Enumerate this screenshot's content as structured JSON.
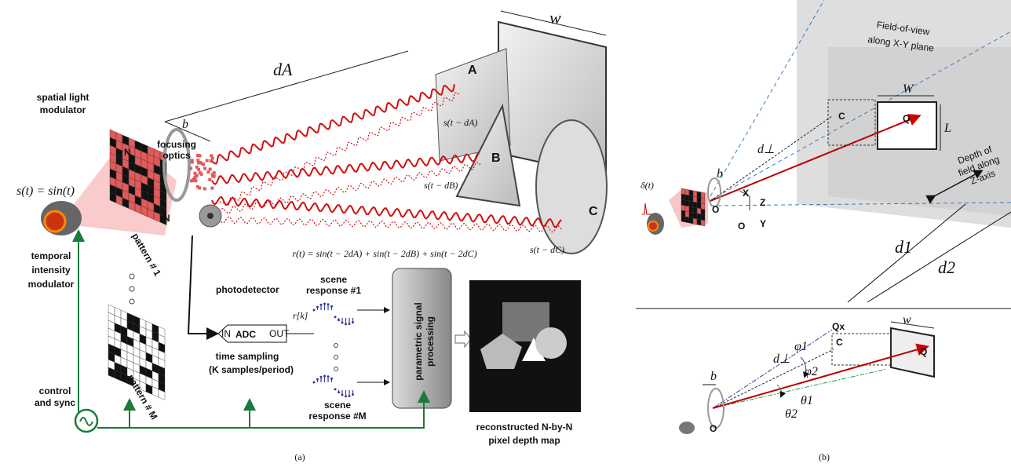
{
  "panel_a": {
    "slm_label": [
      "spatial light",
      "modulator"
    ],
    "optics_label": [
      "focusing",
      "optics"
    ],
    "source_eq": "s(t) = sin(t)",
    "n_top": "N",
    "n_side": "N",
    "pattern_1": "pattern # 1",
    "modulator_label": [
      "temporal",
      "intensity",
      "modulator"
    ],
    "pattern_m": "pattern # M",
    "control_label": [
      "control",
      "and sync"
    ],
    "d_a": "dA",
    "b": "b",
    "w": "w",
    "target_a": "A",
    "target_b": "B",
    "target_c": "C",
    "s_a": "s(t − dA)",
    "s_b": "s(t − dB)",
    "s_c": "s(t − dC)",
    "r_eq": "r(t) = sin(t − 2dA) + sin(t − 2dB) + sin(t − 2dC)",
    "photodetector": "photodetector",
    "response_1": [
      "scene",
      "response #1"
    ],
    "adc_in": "IN",
    "adc": "ADC",
    "adc_out": "OUT",
    "r_k": "r[k]",
    "sampling": "time sampling",
    "sampling_note": "(K samples/period)",
    "response_m": [
      "scene",
      "response #M"
    ],
    "processing": [
      "parametric signal",
      "processing"
    ],
    "output_label": [
      "reconstructed N-by-N",
      "pixel depth map"
    ],
    "caption": "(a)"
  },
  "panel_b": {
    "fov_label": [
      "Field-of-view",
      "along X-Y plane"
    ],
    "top_w": "W",
    "top_l": "L",
    "top_c": "C",
    "top_q": "Q",
    "top_d_perp": "d⊥",
    "top_b": "b",
    "delta": "δ(t)",
    "top_o": "O",
    "axis_x": "X",
    "axis_z": "Z",
    "axis_y": "Y",
    "axis_o": "O",
    "dof_label": [
      "Depth of",
      "field along",
      "Z-axis"
    ],
    "d1": "d1",
    "d2": "d2",
    "bot_qx": "Qx",
    "bot_c": "C",
    "bot_q": "Q",
    "bot_w": "w",
    "phi1": "φ1",
    "phi2": "φ2",
    "bot_d_perp": "d⊥",
    "theta1": "θ1",
    "theta2": "θ2",
    "bot_b": "b",
    "bot_o": "O",
    "caption": "(b)"
  }
}
